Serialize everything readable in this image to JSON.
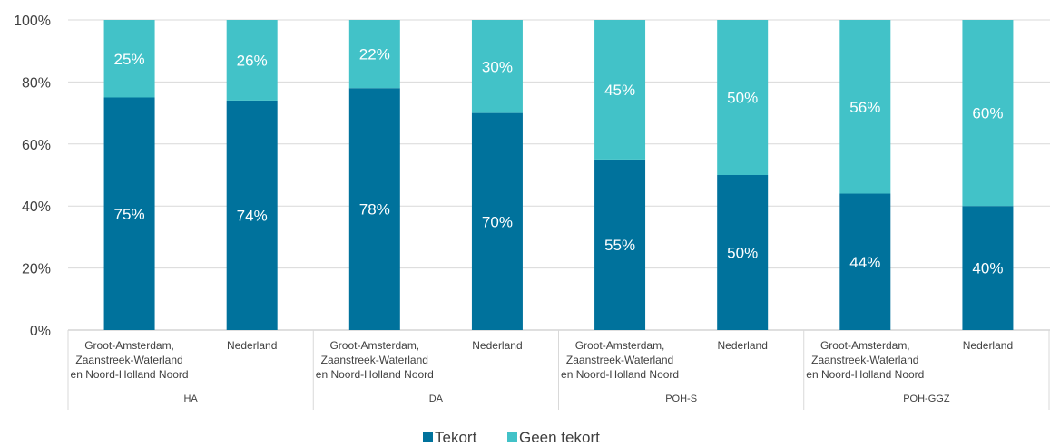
{
  "colors": {
    "tekort": "#00729C",
    "geen_tekort": "#42C2C8",
    "grid": "#D9D9D9",
    "axis": "#BFBFBF",
    "text": "#404040"
  },
  "chart_data": {
    "type": "bar",
    "stacked": "percent",
    "ylim": [
      0,
      100
    ],
    "yticks": [
      "0%",
      "20%",
      "40%",
      "60%",
      "80%",
      "100%"
    ],
    "groups": [
      "HA",
      "DA",
      "POH-S",
      "POH-GGZ"
    ],
    "categories": [
      {
        "group": "HA",
        "label": [
          "Groot-Amsterdam,",
          "Zaanstreek-Waterland",
          "en Noord-Holland Noord"
        ]
      },
      {
        "group": "HA",
        "label": [
          "Nederland"
        ]
      },
      {
        "group": "DA",
        "label": [
          "Groot-Amsterdam,",
          "Zaanstreek-Waterland",
          "en Noord-Holland Noord"
        ]
      },
      {
        "group": "DA",
        "label": [
          "Nederland"
        ]
      },
      {
        "group": "POH-S",
        "label": [
          "Groot-Amsterdam,",
          "Zaanstreek-Waterland",
          "en Noord-Holland Noord"
        ]
      },
      {
        "group": "POH-S",
        "label": [
          "Nederland"
        ]
      },
      {
        "group": "POH-GGZ",
        "label": [
          "Groot-Amsterdam,",
          "Zaanstreek-Waterland",
          "en Noord-Holland Noord"
        ]
      },
      {
        "group": "POH-GGZ",
        "label": [
          "Nederland"
        ]
      }
    ],
    "series": [
      {
        "name": "Tekort",
        "values": [
          75,
          74,
          78,
          70,
          55,
          50,
          44,
          40
        ],
        "labels": [
          "75%",
          "74%",
          "78%",
          "70%",
          "55%",
          "50%",
          "44%",
          "40%"
        ]
      },
      {
        "name": "Geen tekort",
        "values": [
          25,
          26,
          22,
          30,
          45,
          50,
          56,
          60
        ],
        "labels": [
          "25%",
          "26%",
          "22%",
          "30%",
          "45%",
          "50%",
          "56%",
          "60%"
        ]
      }
    ],
    "grid": true,
    "legend_position": "bottom"
  }
}
